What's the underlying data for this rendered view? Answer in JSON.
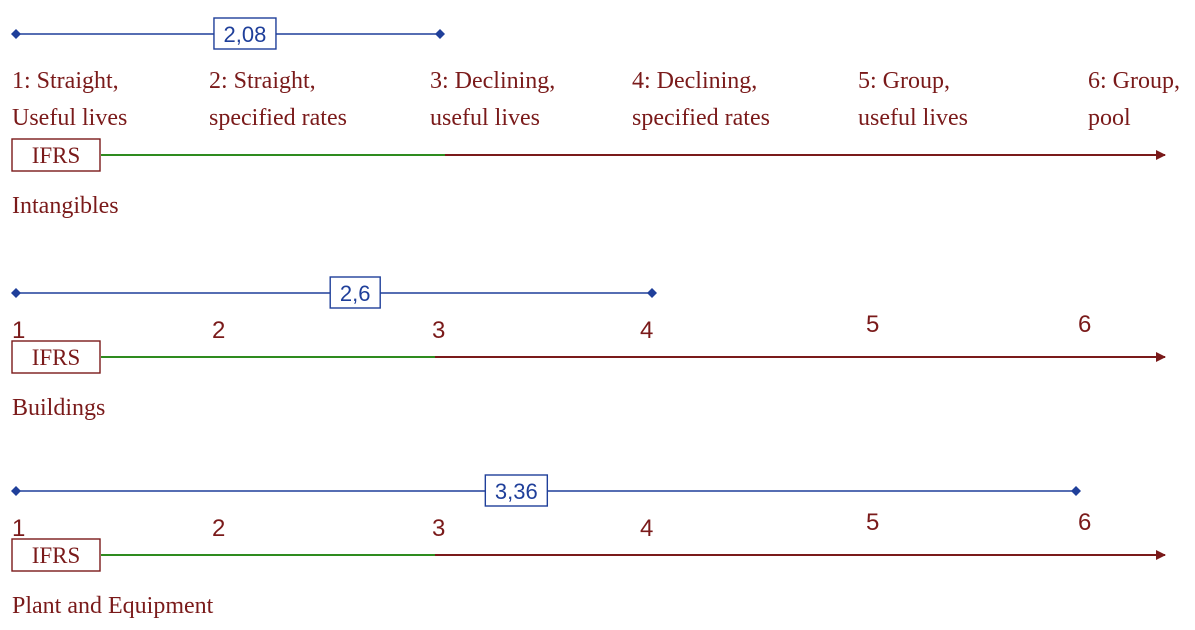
{
  "colors": {
    "range": "#1f3f9a",
    "ifrs_segment": "#2e8b1f",
    "axis": "#7a1a1a",
    "text": "#7a1a1a",
    "marker": "#1f3f9a"
  },
  "methods": [
    {
      "label_line1": "1: Straight,",
      "label_line2": "Useful lives"
    },
    {
      "label_line1": "2: Straight,",
      "label_line2": "specified rates"
    },
    {
      "label_line1": "3: Declining,",
      "label_line2": "useful lives"
    },
    {
      "label_line1": "4: Declining,",
      "label_line2": "specified rates"
    },
    {
      "label_line1": "5: Group,",
      "label_line2": "useful lives"
    },
    {
      "label_line1": "6: Group,",
      "label_line2": "pool"
    }
  ],
  "panels": [
    {
      "category": "Intangibles",
      "badge": "IFRS",
      "scale": "labels",
      "range_min": 1,
      "range_max": 3,
      "average": "2,08",
      "average_value": 2.08,
      "ifrs_max": 3
    },
    {
      "category": "Buildings",
      "badge": "IFRS",
      "scale": "numbers",
      "tick_labels": [
        "1",
        "2",
        "3",
        "4",
        "5",
        "6"
      ],
      "range_min": 1,
      "range_max": 4,
      "average": "2,6",
      "average_value": 2.6,
      "ifrs_max": 3
    },
    {
      "category": "Plant and Equipment",
      "badge": "IFRS",
      "scale": "numbers",
      "tick_labels": [
        "1",
        "2",
        "3",
        "4",
        "5",
        "6"
      ],
      "range_min": 1,
      "range_max": 6,
      "average": "3,36",
      "average_value": 3.36,
      "ifrs_max": 3
    }
  ]
}
